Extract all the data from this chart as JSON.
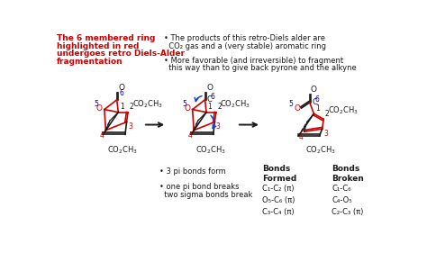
{
  "bg_color": "#ffffff",
  "top_left_text_lines": [
    "The 6 membered ring",
    "highlighted in red",
    "undergoes retro Diels-Alder",
    "fragmentation"
  ],
  "top_right_text_lines": [
    "• The products of this retro-Diels alder are",
    "  CO₂ gas and a (very stable) aromatic ring",
    "",
    "• More favorable (and irreversible) to fragment",
    "  this way than to give back pyrone and the alkyne"
  ],
  "bottom_left_text_lines": [
    "• 3 pi bonds form",
    "",
    "• one pi bond breaks",
    "  two sigma bonds break"
  ],
  "bonds_formed_header": "Bonds\nFormed",
  "bonds_broken_header": "Bonds\nBroken",
  "bonds_formed": [
    "C₁-C₂ (π)",
    "O₅-C₆ (π)",
    "C₃-C₄ (π)"
  ],
  "bonds_broken": [
    "C₁-C₆",
    "C₄-O₅",
    "C₂-C₃ (π)"
  ],
  "red_color": "#cc0000",
  "blue_color": "#1a44cc",
  "black_color": "#1a1a1a"
}
